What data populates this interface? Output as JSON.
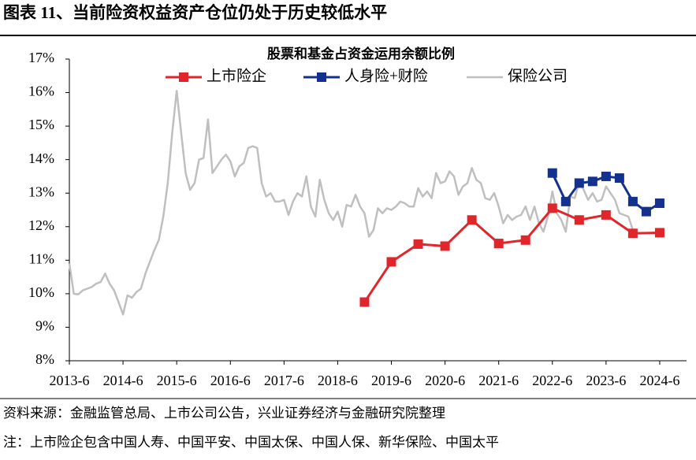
{
  "header": {
    "title": "图表 11、当前险资权益资产仓位仍处于历史较低水平"
  },
  "chart_data": {
    "type": "line",
    "title": "股票和基金占资金运用余额比例",
    "legend": "top",
    "xlim": [
      "2013-6",
      "2024-12"
    ],
    "xticks": [
      "2013-6",
      "2014-6",
      "2015-6",
      "2016-6",
      "2017-6",
      "2018-6",
      "2019-6",
      "2020-6",
      "2021-6",
      "2022-6",
      "2023-6",
      "2024-6"
    ],
    "ylim": [
      8,
      17
    ],
    "yticks": [
      {
        "value": 8,
        "label": "8%"
      },
      {
        "value": 9,
        "label": "9%"
      },
      {
        "value": 10,
        "label": "10%"
      },
      {
        "value": 11,
        "label": "11%"
      },
      {
        "value": 12,
        "label": "12%"
      },
      {
        "value": 13,
        "label": "13%"
      },
      {
        "value": 14,
        "label": "14%"
      },
      {
        "value": 15,
        "label": "15%"
      },
      {
        "value": 16,
        "label": "16%"
      },
      {
        "value": 17,
        "label": "17%"
      }
    ],
    "series": [
      {
        "name": "上市险企",
        "color": "#e0262b",
        "marker": "square",
        "x": [
          "2018-12",
          "2019-6",
          "2019-12",
          "2020-6",
          "2020-12",
          "2021-6",
          "2021-12",
          "2022-6",
          "2022-12",
          "2023-6",
          "2023-12",
          "2024-6"
        ],
        "values": [
          9.75,
          10.95,
          11.48,
          11.42,
          12.2,
          11.5,
          11.6,
          12.55,
          12.2,
          12.35,
          11.8,
          11.82
        ]
      },
      {
        "name": "人身险+财险",
        "color": "#14318f",
        "marker": "square",
        "x": [
          "2022-6",
          "2022-9",
          "2022-12",
          "2023-3",
          "2023-6",
          "2023-9",
          "2023-12",
          "2024-3",
          "2024-6"
        ],
        "values": [
          13.6,
          12.75,
          13.3,
          13.35,
          13.5,
          13.45,
          12.75,
          12.45,
          12.7
        ]
      },
      {
        "name": "保险公司",
        "color": "#bfbfbf",
        "marker": "none",
        "x": [
          "2013-6",
          "2013-7",
          "2013-8",
          "2013-9",
          "2013-10",
          "2013-11",
          "2013-12",
          "2014-1",
          "2014-2",
          "2014-3",
          "2014-4",
          "2014-5",
          "2014-6",
          "2014-7",
          "2014-8",
          "2014-9",
          "2014-10",
          "2014-11",
          "2014-12",
          "2015-1",
          "2015-2",
          "2015-3",
          "2015-4",
          "2015-5",
          "2015-6",
          "2015-7",
          "2015-8",
          "2015-9",
          "2015-10",
          "2015-11",
          "2015-12",
          "2016-1",
          "2016-2",
          "2016-3",
          "2016-4",
          "2016-5",
          "2016-6",
          "2016-7",
          "2016-8",
          "2016-9",
          "2016-10",
          "2016-11",
          "2016-12",
          "2017-1",
          "2017-2",
          "2017-3",
          "2017-4",
          "2017-5",
          "2017-6",
          "2017-7",
          "2017-8",
          "2017-9",
          "2017-10",
          "2017-11",
          "2017-12",
          "2018-1",
          "2018-2",
          "2018-3",
          "2018-4",
          "2018-5",
          "2018-6",
          "2018-7",
          "2018-8",
          "2018-9",
          "2018-10",
          "2018-11",
          "2018-12",
          "2019-1",
          "2019-2",
          "2019-3",
          "2019-4",
          "2019-5",
          "2019-6",
          "2019-7",
          "2019-8",
          "2019-9",
          "2019-10",
          "2019-11",
          "2019-12",
          "2020-1",
          "2020-2",
          "2020-3",
          "2020-4",
          "2020-5",
          "2020-6",
          "2020-7",
          "2020-8",
          "2020-9",
          "2020-10",
          "2020-11",
          "2020-12",
          "2021-1",
          "2021-2",
          "2021-3",
          "2021-4",
          "2021-5",
          "2021-6",
          "2021-7",
          "2021-8",
          "2021-9",
          "2021-10",
          "2021-11",
          "2021-12",
          "2022-1",
          "2022-2",
          "2022-3",
          "2022-4",
          "2022-5",
          "2022-6",
          "2022-7",
          "2022-8",
          "2022-9",
          "2022-10",
          "2022-11",
          "2022-12",
          "2023-1",
          "2023-2",
          "2023-3",
          "2023-4",
          "2023-5",
          "2023-6",
          "2023-7",
          "2023-8",
          "2023-9",
          "2023-10",
          "2023-11",
          "2023-12"
        ],
        "values": [
          10.9,
          10.0,
          9.98,
          10.1,
          10.15,
          10.2,
          10.3,
          10.35,
          10.6,
          10.3,
          10.1,
          9.75,
          9.38,
          9.95,
          9.88,
          10.05,
          10.15,
          10.6,
          10.95,
          11.3,
          11.6,
          12.3,
          13.3,
          14.8,
          16.05,
          14.8,
          13.6,
          13.1,
          13.3,
          14.0,
          14.05,
          15.2,
          13.6,
          13.8,
          14.0,
          14.15,
          13.95,
          13.5,
          13.8,
          13.9,
          14.35,
          14.4,
          14.35,
          13.3,
          12.9,
          13.0,
          12.75,
          12.75,
          12.8,
          12.35,
          12.75,
          13.0,
          12.9,
          13.5,
          12.6,
          12.3,
          13.4,
          12.8,
          12.4,
          12.2,
          12.45,
          12.0,
          12.65,
          12.6,
          12.95,
          12.6,
          12.4,
          11.7,
          11.9,
          12.55,
          12.4,
          12.55,
          12.5,
          12.6,
          12.75,
          12.7,
          12.6,
          12.6,
          13.15,
          12.9,
          13.05,
          12.85,
          13.6,
          13.3,
          13.35,
          13.65,
          13.5,
          12.95,
          13.2,
          13.3,
          13.75,
          13.4,
          13.3,
          12.85,
          12.8,
          13.0,
          12.6,
          12.1,
          12.35,
          12.2,
          12.3,
          12.35,
          12.6,
          12.2,
          12.6,
          12.1,
          11.85,
          12.3,
          13.05,
          12.4,
          12.2,
          11.85,
          12.9,
          12.85,
          13.35,
          13.1,
          12.8,
          13.0,
          12.75,
          12.8,
          13.2,
          13.0,
          12.8,
          12.4,
          12.35,
          12.3,
          11.9
        ]
      }
    ]
  },
  "footer": {
    "source": "资料来源：金融监管总局、上市公司公告，兴业证券经济与金融研究院整理",
    "note": "注：上市险企包含中国人寿、中国平安、中国太保、中国人保、新华保险、中国太平"
  }
}
